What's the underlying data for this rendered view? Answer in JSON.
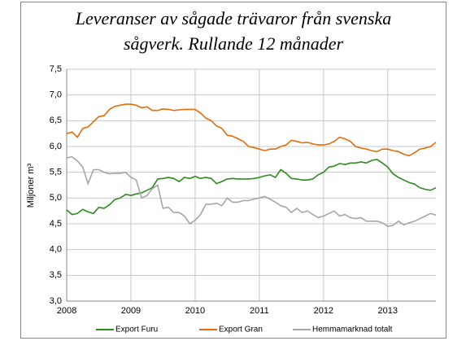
{
  "chart_data": {
    "type": "line",
    "title": [
      "Leveranser av sågade trävaror från svenska",
      "sågverk. Rullande 12 månader"
    ],
    "y_label": "Miljoner m³",
    "x": [
      2008,
      2008.083,
      2008.167,
      2008.25,
      2008.333,
      2008.417,
      2008.5,
      2008.583,
      2008.667,
      2008.75,
      2008.833,
      2008.917,
      2009,
      2009.083,
      2009.167,
      2009.25,
      2009.333,
      2009.417,
      2009.5,
      2009.583,
      2009.667,
      2009.75,
      2009.833,
      2009.917,
      2010,
      2010.083,
      2010.167,
      2010.25,
      2010.333,
      2010.417,
      2010.5,
      2010.583,
      2010.667,
      2010.75,
      2010.833,
      2010.917,
      2011,
      2011.083,
      2011.167,
      2011.25,
      2011.333,
      2011.417,
      2011.5,
      2011.583,
      2011.667,
      2011.75,
      2011.833,
      2011.917,
      2012,
      2012.083,
      2012.167,
      2012.25,
      2012.333,
      2012.417,
      2012.5,
      2012.583,
      2012.667,
      2012.75,
      2012.833,
      2012.917,
      2013,
      2013.083,
      2013.167,
      2013.25,
      2013.333,
      2013.417,
      2013.5,
      2013.583,
      2013.667,
      2013.75
    ],
    "series": [
      {
        "name": "Export Furu",
        "color": "#2e8b1e",
        "values": [
          4.77,
          4.68,
          4.7,
          4.78,
          4.73,
          4.7,
          4.82,
          4.8,
          4.87,
          4.97,
          5.0,
          5.07,
          5.05,
          5.08,
          5.1,
          5.15,
          5.2,
          5.37,
          5.38,
          5.4,
          5.38,
          5.32,
          5.4,
          5.38,
          5.42,
          5.38,
          5.4,
          5.38,
          5.28,
          5.32,
          5.37,
          5.38,
          5.37,
          5.37,
          5.37,
          5.38,
          5.4,
          5.43,
          5.45,
          5.4,
          5.55,
          5.48,
          5.38,
          5.37,
          5.35,
          5.35,
          5.37,
          5.45,
          5.5,
          5.6,
          5.62,
          5.67,
          5.65,
          5.68,
          5.68,
          5.7,
          5.68,
          5.73,
          5.75,
          5.68,
          5.6,
          5.47,
          5.4,
          5.35,
          5.3,
          5.27,
          5.2,
          5.17,
          5.15,
          5.2
        ]
      },
      {
        "name": "Export Gran",
        "color": "#e46c0a",
        "values": [
          6.25,
          6.28,
          6.18,
          6.35,
          6.38,
          6.48,
          6.58,
          6.6,
          6.72,
          6.78,
          6.8,
          6.82,
          6.82,
          6.8,
          6.75,
          6.77,
          6.7,
          6.7,
          6.73,
          6.72,
          6.7,
          6.71,
          6.72,
          6.72,
          6.72,
          6.65,
          6.55,
          6.5,
          6.4,
          6.35,
          6.22,
          6.2,
          6.15,
          6.1,
          6.0,
          5.98,
          5.95,
          5.92,
          5.95,
          5.95,
          6.0,
          6.03,
          6.12,
          6.1,
          6.07,
          6.08,
          6.05,
          6.03,
          6.03,
          6.05,
          6.1,
          6.18,
          6.15,
          6.1,
          6.0,
          5.97,
          5.95,
          5.92,
          5.9,
          5.95,
          5.95,
          5.92,
          5.9,
          5.85,
          5.82,
          5.88,
          5.95,
          5.97,
          6.0,
          6.08
        ]
      },
      {
        "name": "Hemmamarknad totalt",
        "color": "#a6a6a6",
        "values": [
          5.78,
          5.8,
          5.72,
          5.6,
          5.28,
          5.55,
          5.55,
          5.5,
          5.47,
          5.48,
          5.48,
          5.5,
          5.4,
          5.35,
          5.0,
          5.05,
          5.18,
          5.25,
          4.8,
          4.82,
          4.72,
          4.72,
          4.65,
          4.5,
          4.57,
          4.68,
          4.88,
          4.88,
          4.9,
          4.85,
          5.0,
          4.92,
          4.92,
          4.95,
          4.95,
          4.98,
          5.0,
          5.03,
          4.98,
          4.92,
          4.85,
          4.82,
          4.72,
          4.8,
          4.72,
          4.75,
          4.68,
          4.62,
          4.65,
          4.7,
          4.75,
          4.65,
          4.68,
          4.62,
          4.6,
          4.62,
          4.55,
          4.55,
          4.55,
          4.52,
          4.45,
          4.47,
          4.55,
          4.48,
          4.52,
          4.55,
          4.6,
          4.65,
          4.7,
          4.67
        ]
      }
    ],
    "xlim": [
      2008,
      2013.75
    ],
    "xticks": [
      2008,
      2009,
      2010,
      2011,
      2012,
      2013
    ],
    "ylim": [
      3,
      7.5
    ],
    "yticks": [
      {
        "value": 3,
        "label": "3,0"
      },
      {
        "value": 3.5,
        "label": "3,5"
      },
      {
        "value": 4,
        "label": "4,0"
      },
      {
        "value": 4.5,
        "label": "4,5"
      },
      {
        "value": 5,
        "label": "5,0"
      },
      {
        "value": 5.5,
        "label": "5,5"
      },
      {
        "value": 6,
        "label": "6,0"
      },
      {
        "value": 6.5,
        "label": "6,5"
      },
      {
        "value": 7,
        "label": "7,0"
      },
      {
        "value": 7.5,
        "label": "7,5"
      }
    ],
    "grid": true,
    "legend": "bottom"
  }
}
